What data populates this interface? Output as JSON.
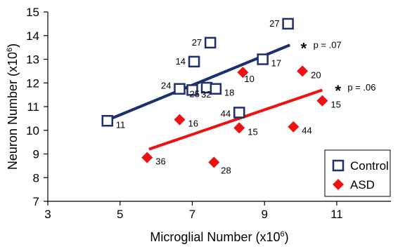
{
  "chart_data": {
    "type": "scatter",
    "xlabel": "Microglial Number (x10",
    "xlabel_sup": "6",
    "xlabel_end": ")",
    "ylabel": "Neuron Number (x10",
    "ylabel_sup": "6",
    "ylabel_end": ")",
    "xlim": [
      3,
      12.5
    ],
    "ylim": [
      7,
      15
    ],
    "xticks": [
      3,
      5,
      7,
      9,
      11
    ],
    "yticks": [
      7,
      8,
      9,
      10,
      11,
      12,
      13,
      14,
      15
    ],
    "grid": false,
    "legend_position": "bottom-right",
    "series": [
      {
        "name": "Control",
        "marker": "square",
        "color": "#1c2f6e",
        "points": [
          {
            "x": 4.65,
            "y": 10.4,
            "label": "11"
          },
          {
            "x": 6.65,
            "y": 11.75,
            "label": "24"
          },
          {
            "x": 7.0,
            "y": 11.7,
            "label": "25"
          },
          {
            "x": 7.05,
            "y": 12.9,
            "label": "14"
          },
          {
            "x": 7.4,
            "y": 11.8,
            "label": "32"
          },
          {
            "x": 7.5,
            "y": 13.7,
            "label": "27"
          },
          {
            "x": 7.65,
            "y": 11.75,
            "label": "18"
          },
          {
            "x": 8.3,
            "y": 10.75,
            "label": "44"
          },
          {
            "x": 8.95,
            "y": 13.0,
            "label": "17"
          },
          {
            "x": 9.65,
            "y": 14.5,
            "label": "27"
          }
        ],
        "fit": {
          "x": [
            4.6,
            9.7
          ],
          "y": [
            10.4,
            13.6
          ]
        }
      },
      {
        "name": "ASD",
        "marker": "diamond",
        "color": "#ee1111",
        "points": [
          {
            "x": 5.75,
            "y": 8.85,
            "label": "36"
          },
          {
            "x": 6.65,
            "y": 10.45,
            "label": "16"
          },
          {
            "x": 7.6,
            "y": 8.65,
            "label": "28"
          },
          {
            "x": 8.3,
            "y": 10.1,
            "label": "15"
          },
          {
            "x": 8.4,
            "y": 12.45,
            "label": "10"
          },
          {
            "x": 9.8,
            "y": 10.15,
            "label": "44"
          },
          {
            "x": 10.05,
            "y": 12.5,
            "label": "20"
          },
          {
            "x": 10.6,
            "y": 11.25,
            "label": "15"
          }
        ],
        "fit": {
          "x": [
            5.8,
            10.6
          ],
          "y": [
            9.2,
            11.7
          ]
        }
      }
    ],
    "annotations": [
      {
        "series": "Control",
        "text": "p = .07",
        "x": 10.0,
        "y": 13.6
      },
      {
        "series": "ASD",
        "text": "p = .06",
        "x": 10.95,
        "y": 11.8
      }
    ]
  }
}
